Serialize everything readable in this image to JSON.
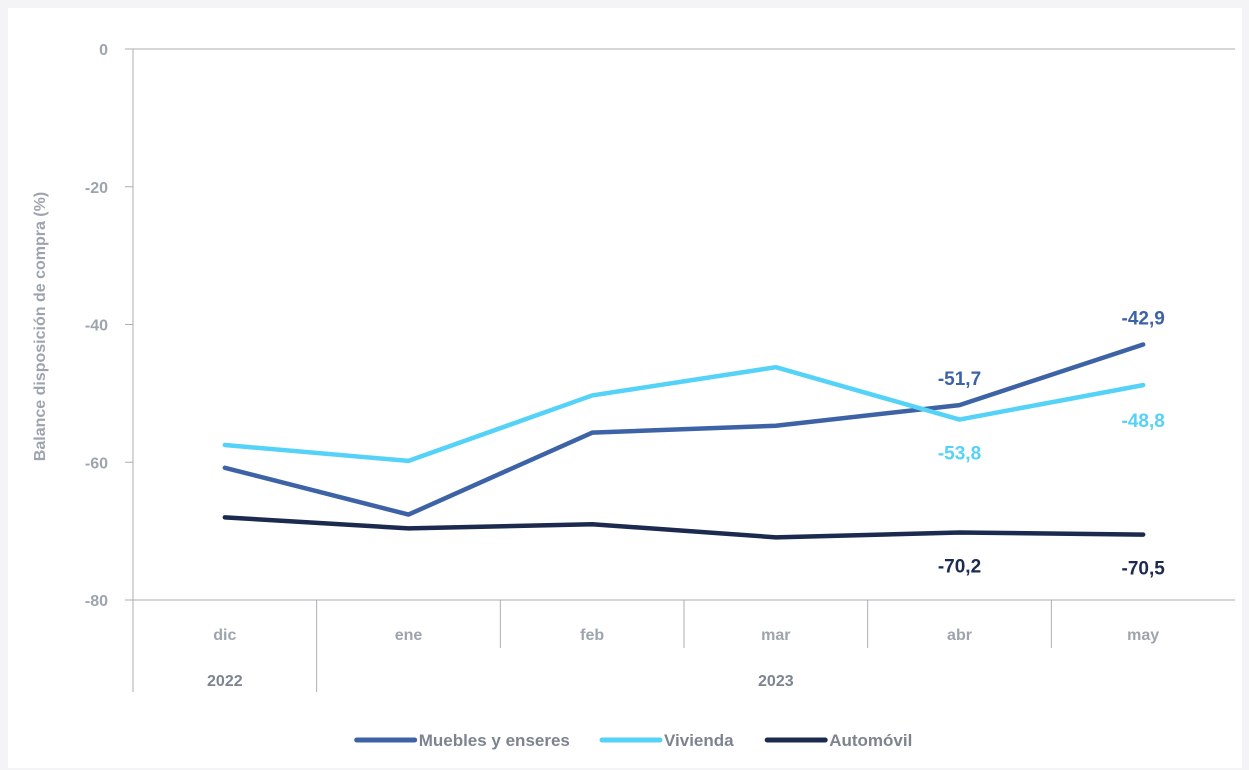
{
  "chart_data": {
    "type": "line",
    "ylabel": "Balance disposición de compra (%)",
    "ylim": [
      -80,
      0
    ],
    "yticks": [
      0,
      -20,
      -40,
      -60,
      -80
    ],
    "categories": [
      "dic",
      "ene",
      "feb",
      "mar",
      "abr",
      "may"
    ],
    "years": [
      {
        "label": "2022",
        "span": [
          0,
          0
        ]
      },
      {
        "label": "2023",
        "span": [
          1,
          5
        ]
      }
    ],
    "series": [
      {
        "name": "Muebles y enseres",
        "color": "#3d63a6",
        "values": [
          -60.8,
          -67.6,
          -55.7,
          -54.7,
          -51.7,
          -42.9
        ],
        "labels": [
          null,
          null,
          null,
          null,
          "-51,7",
          "-42,9"
        ]
      },
      {
        "name": "Vivienda",
        "color": "#55d2f7",
        "values": [
          -57.5,
          -59.8,
          -50.3,
          -46.2,
          -53.8,
          -48.8
        ],
        "labels": [
          null,
          null,
          null,
          null,
          "-53,8",
          "-48,8"
        ]
      },
      {
        "name": "Automóvil",
        "color": "#1c2a50",
        "values": [
          -68.0,
          -69.6,
          -69.0,
          -70.9,
          -70.2,
          -70.5
        ],
        "labels": [
          null,
          null,
          null,
          null,
          "-70,2",
          "-70,5"
        ]
      }
    ],
    "legend": "bottom",
    "grid": false
  }
}
